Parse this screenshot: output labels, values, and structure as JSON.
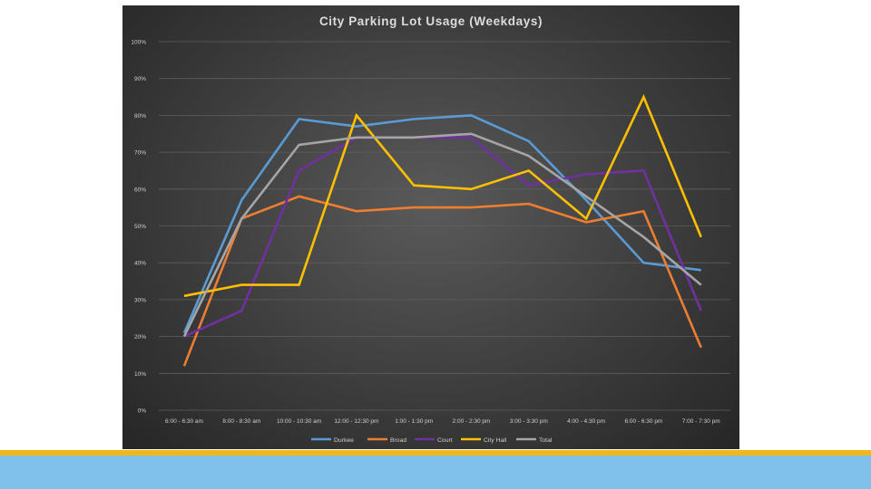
{
  "chart_data": {
    "type": "line",
    "title": "City Parking Lot Usage (Weekdays)",
    "xlabel": "",
    "ylabel": "",
    "ylim": [
      0,
      100
    ],
    "y_ticks": [
      "0%",
      "10%",
      "20%",
      "30%",
      "40%",
      "50%",
      "60%",
      "70%",
      "80%",
      "90%",
      "100%"
    ],
    "categories": [
      "6:00 - 6:30 am",
      "8:00 - 8:30 am",
      "10:00 - 10:30 am",
      "12:00 - 12:30 pm",
      "1:00 - 1:30 pm",
      "2:00 - 2:30 pm",
      "3:00 - 3:30 pm",
      "4:00 - 4:30 pm",
      "6:00 - 6:30 pm",
      "7:00 - 7:30 pm"
    ],
    "grid": true,
    "legend_position": "bottom",
    "series": [
      {
        "name": "Durkee",
        "color": "#5b9bd5",
        "values": [
          21,
          57,
          79,
          77,
          79,
          80,
          73,
          57,
          40,
          38
        ]
      },
      {
        "name": "Broad",
        "color": "#ed7d31",
        "values": [
          12,
          52,
          58,
          54,
          55,
          55,
          56,
          51,
          54,
          17
        ]
      },
      {
        "name": "Court",
        "color": "#7030a0",
        "values": [
          20,
          27,
          65,
          74,
          74,
          74,
          61,
          64,
          65,
          27
        ]
      },
      {
        "name": "City Hall",
        "color": "#ffc000",
        "values": [
          31,
          34,
          34,
          80,
          61,
          60,
          65,
          52,
          85,
          47
        ]
      },
      {
        "name": "Total",
        "color": "#a5a5a5",
        "values": [
          20,
          52,
          72,
          74,
          74,
          75,
          69,
          58,
          47,
          34
        ]
      }
    ]
  }
}
